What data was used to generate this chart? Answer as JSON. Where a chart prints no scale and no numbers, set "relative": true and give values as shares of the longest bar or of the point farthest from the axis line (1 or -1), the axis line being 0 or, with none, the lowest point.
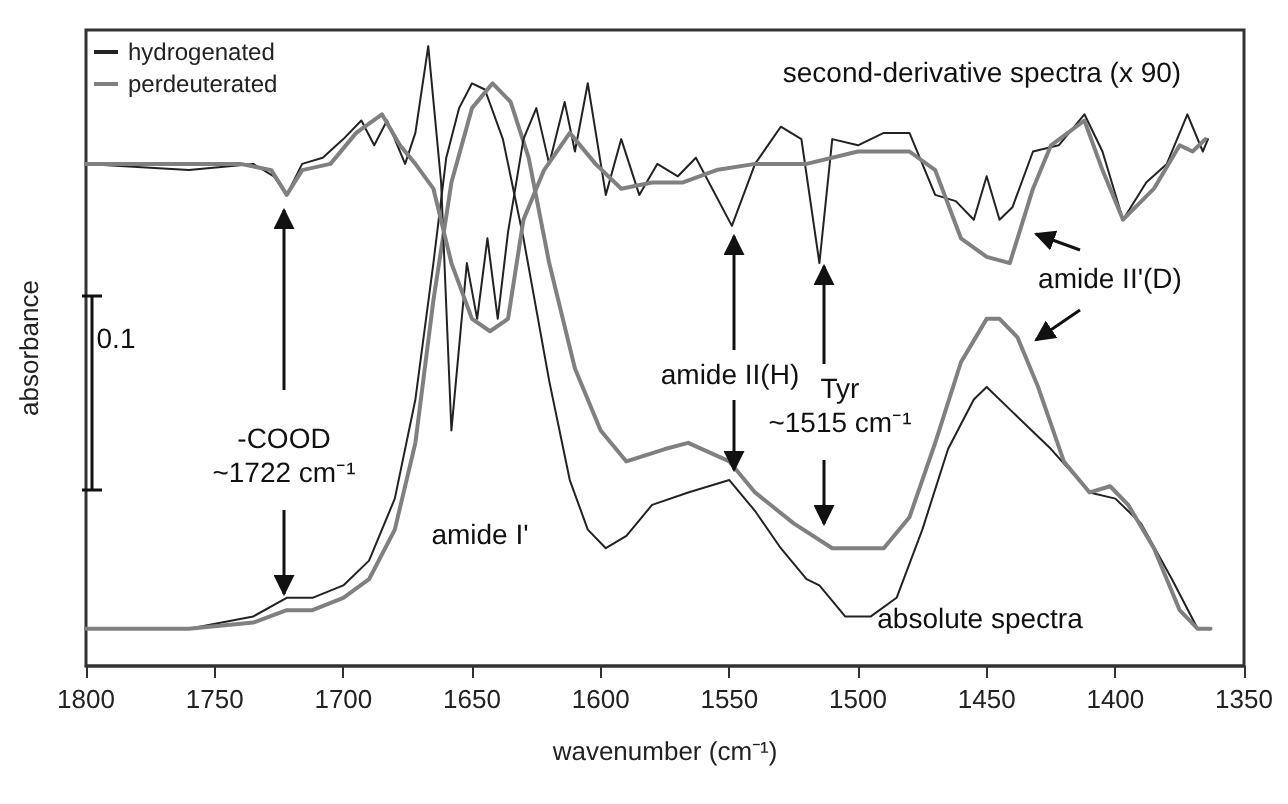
{
  "chart_data": {
    "type": "line",
    "relative": true,
    "xlabel": "wavenumber (cm⁻¹)",
    "ylabel": "absorbance",
    "xlim": [
      1800,
      1350
    ],
    "xticks": [
      1800,
      1750,
      1700,
      1650,
      1600,
      1550,
      1500,
      1450,
      1400,
      1350
    ],
    "grid": false,
    "legend": "top left",
    "marker": "none",
    "line_style": "solid",
    "series": [
      {
        "name": "hydrogenated",
        "color": "#222222",
        "x": [
          1800,
          1760,
          1735,
          1722,
          1712,
          1700,
          1690,
          1680,
          1672,
          1665,
          1660,
          1655,
          1650,
          1645,
          1638,
          1630,
          1620,
          1612,
          1605,
          1598,
          1590,
          1580,
          1566,
          1550,
          1540,
          1530,
          1520,
          1515,
          1505,
          1495,
          1485,
          1475,
          1465,
          1455,
          1450,
          1440,
          1425,
          1410,
          1400,
          1390,
          1378,
          1368,
          1365
        ],
        "values": [
          0.06,
          0.06,
          0.08,
          0.11,
          0.11,
          0.13,
          0.17,
          0.27,
          0.43,
          0.65,
          0.82,
          0.9,
          0.94,
          0.93,
          0.85,
          0.69,
          0.46,
          0.3,
          0.22,
          0.19,
          0.21,
          0.26,
          0.28,
          0.3,
          0.25,
          0.19,
          0.14,
          0.13,
          0.08,
          0.08,
          0.11,
          0.22,
          0.35,
          0.43,
          0.45,
          0.41,
          0.35,
          0.28,
          0.27,
          0.23,
          0.14,
          0.06,
          0.06
        ]
      },
      {
        "name": "perdeuterated",
        "color": "#808080",
        "x": [
          1800,
          1760,
          1735,
          1722,
          1712,
          1700,
          1690,
          1680,
          1672,
          1665,
          1658,
          1650,
          1642,
          1635,
          1628,
          1620,
          1610,
          1600,
          1590,
          1575,
          1566,
          1550,
          1540,
          1525,
          1510,
          1500,
          1490,
          1480,
          1470,
          1460,
          1450,
          1445,
          1438,
          1430,
          1420,
          1410,
          1402,
          1395,
          1385,
          1375,
          1368,
          1363
        ],
        "values": [
          0.06,
          0.06,
          0.07,
          0.09,
          0.09,
          0.11,
          0.14,
          0.22,
          0.36,
          0.59,
          0.78,
          0.9,
          0.94,
          0.91,
          0.82,
          0.65,
          0.48,
          0.38,
          0.33,
          0.35,
          0.36,
          0.33,
          0.28,
          0.23,
          0.19,
          0.19,
          0.19,
          0.24,
          0.36,
          0.49,
          0.56,
          0.56,
          0.53,
          0.45,
          0.33,
          0.28,
          0.29,
          0.26,
          0.19,
          0.09,
          0.06,
          0.06
        ]
      },
      {
        "color": "#222222",
        "x": [
          1800,
          1760,
          1735,
          1727,
          1722,
          1716,
          1708,
          1700,
          1693,
          1688,
          1683,
          1676,
          1672,
          1667,
          1662,
          1658,
          1652,
          1648,
          1644,
          1640,
          1636,
          1630,
          1625,
          1620,
          1614,
          1610,
          1605,
          1598,
          1592,
          1585,
          1578,
          1570,
          1563,
          1549,
          1540,
          1530,
          1522,
          1515,
          1510,
          1500,
          1490,
          1480,
          1470,
          1462,
          1455,
          1450,
          1445,
          1440,
          1432,
          1422,
          1412,
          1405,
          1397,
          1388,
          1380,
          1372,
          1366,
          1364
        ],
        "values": [
          0.81,
          0.8,
          0.81,
          0.79,
          0.76,
          0.81,
          0.82,
          0.85,
          0.88,
          0.84,
          0.88,
          0.81,
          0.86,
          1.0,
          0.78,
          0.38,
          0.65,
          0.56,
          0.69,
          0.56,
          0.7,
          0.85,
          0.9,
          0.81,
          0.91,
          0.83,
          0.94,
          0.76,
          0.85,
          0.76,
          0.81,
          0.79,
          0.82,
          0.71,
          0.81,
          0.87,
          0.85,
          0.65,
          0.85,
          0.84,
          0.86,
          0.86,
          0.76,
          0.75,
          0.72,
          0.79,
          0.72,
          0.74,
          0.83,
          0.84,
          0.89,
          0.83,
          0.72,
          0.78,
          0.81,
          0.89,
          0.83,
          0.85
        ]
      },
      {
        "color": "#808080",
        "x": [
          1800,
          1740,
          1728,
          1722,
          1716,
          1705,
          1695,
          1685,
          1678,
          1672,
          1665,
          1658,
          1650,
          1643,
          1636,
          1630,
          1622,
          1612,
          1602,
          1592,
          1580,
          1568,
          1555,
          1540,
          1520,
          1500,
          1480,
          1470,
          1460,
          1450,
          1441,
          1432,
          1425,
          1412,
          1405,
          1397,
          1385,
          1375,
          1370,
          1365
        ],
        "values": [
          0.81,
          0.81,
          0.8,
          0.76,
          0.8,
          0.81,
          0.86,
          0.89,
          0.84,
          0.81,
          0.77,
          0.65,
          0.56,
          0.54,
          0.56,
          0.72,
          0.8,
          0.86,
          0.81,
          0.77,
          0.78,
          0.78,
          0.8,
          0.81,
          0.81,
          0.83,
          0.83,
          0.8,
          0.69,
          0.66,
          0.65,
          0.77,
          0.84,
          0.88,
          0.8,
          0.72,
          0.77,
          0.84,
          0.83,
          0.85
        ]
      }
    ],
    "annotations": [
      "second-derivative spectra (x 90)",
      "absolute spectra",
      "amide I'",
      "-COOD\n~1722 cm⁻¹",
      "amide II(H)",
      "Tyr\n~1515 cm⁻¹",
      "amide II'(D)",
      "0.1"
    ]
  }
}
